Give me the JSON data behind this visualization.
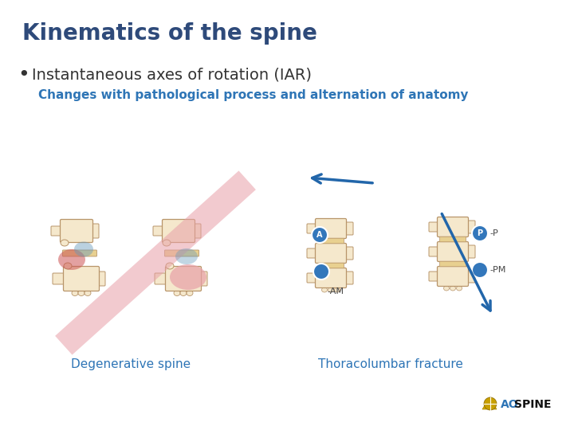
{
  "title": "Kinematics of the spine",
  "title_color": "#2e4a7a",
  "title_fontsize": 20,
  "bullet_text": "Instantaneous axes of rotation (IAR)",
  "bullet_fontsize": 14,
  "bullet_color": "#333333",
  "sub_text": "Changes with pathological process and alternation of anatomy",
  "sub_fontsize": 11,
  "sub_color": "#2e75b6",
  "label_degen": "Degenerative spine",
  "label_thoraco": "Thoracolumbar fracture",
  "label_color": "#2e75b6",
  "label_fontsize": 11,
  "bg_color": "#ffffff",
  "spine_bone_color": "#f5e8cc",
  "spine_bone_edge": "#b8956a",
  "disc_color": "#e8d090",
  "red_ellipse_color": "#cc5555",
  "blue_ellipse_color": "#6699bb",
  "pink_band_color": "#e8a0a8",
  "arrow_color": "#2266aa",
  "iar_circle_color": "#3377bb",
  "iar_circle_edge": "#ffffff"
}
